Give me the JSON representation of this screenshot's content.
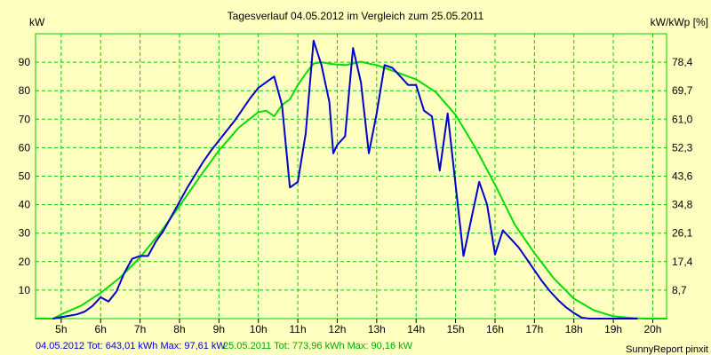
{
  "chart_data": {
    "type": "line",
    "title": "Tagesverlauf 04.05.2012 im Vergleich zum 25.05.2011",
    "ylabel_left": "kW",
    "ylabel_right": "kW/kWp [%]",
    "x_ticks": [
      "5h",
      "6h",
      "7h",
      "8h",
      "9h",
      "10h",
      "11h",
      "12h",
      "13h",
      "14h",
      "15h",
      "16h",
      "17h",
      "18h",
      "19h",
      "20h"
    ],
    "y_ticks_left": [
      "10",
      "20",
      "30",
      "40",
      "50",
      "60",
      "70",
      "80",
      "90"
    ],
    "y_ticks_right": [
      "8,7",
      "17,4",
      "26,1",
      "34,8",
      "43,6",
      "52,3",
      "61,0",
      "69,7",
      "78,4"
    ],
    "xlim": [
      4.35,
      20.35
    ],
    "ylim": [
      0,
      100
    ],
    "grid": true,
    "colors": {
      "background": "#ffffc0",
      "grid": "#00cc00",
      "series_2012": "#0000cc",
      "series_2011": "#00dd00"
    },
    "series": [
      {
        "legend": "04.05.2012 Tot: 643,01 kWh Max: 97,61 kW",
        "color": "#0000cc",
        "x": [
          4.8,
          5.0,
          5.2,
          5.4,
          5.6,
          5.8,
          6.0,
          6.2,
          6.4,
          6.6,
          6.8,
          7.0,
          7.2,
          7.4,
          7.6,
          7.8,
          8.0,
          8.2,
          8.4,
          8.6,
          8.8,
          9.0,
          9.2,
          9.4,
          9.6,
          9.8,
          10.0,
          10.2,
          10.4,
          10.6,
          10.8,
          11.0,
          11.2,
          11.4,
          11.6,
          11.8,
          11.9,
          12.0,
          12.2,
          12.4,
          12.6,
          12.8,
          13.0,
          13.2,
          13.4,
          13.6,
          13.8,
          14.0,
          14.2,
          14.4,
          14.6,
          14.8,
          15.0,
          15.2,
          15.4,
          15.6,
          15.8,
          16.0,
          16.2,
          16.4,
          16.6,
          16.8,
          17.0,
          17.2,
          17.4,
          17.6,
          17.8,
          18.0,
          18.2,
          18.4,
          18.6,
          18.8,
          19.0,
          19.2,
          19.4,
          19.6
        ],
        "y": [
          0,
          0.5,
          1,
          1.5,
          2.5,
          4.5,
          7.5,
          6,
          9.5,
          16,
          21,
          22,
          22,
          27,
          31,
          36,
          41,
          46,
          50.5,
          55,
          59,
          62.5,
          66,
          69.5,
          73.5,
          77.5,
          81,
          83,
          85,
          75,
          46,
          48,
          65,
          97.6,
          89,
          76,
          58,
          61,
          64,
          95,
          83,
          58,
          72,
          89,
          88,
          85,
          82,
          82,
          73,
          71,
          52,
          72,
          47,
          22,
          35,
          48,
          40,
          22.5,
          31,
          28,
          25,
          21,
          17,
          13,
          9.5,
          6.5,
          4,
          2,
          0.3,
          0,
          0,
          0,
          0,
          0,
          0,
          0
        ],
        "note": ""
      },
      {
        "legend": "25.05.2011 Tot: 773,96 kWh Max: 90,16 kW",
        "color": "#00dd00",
        "x": [
          4.35,
          4.8,
          5.0,
          5.5,
          6.0,
          6.5,
          7.0,
          7.5,
          8.0,
          8.5,
          9.0,
          9.5,
          10.0,
          10.2,
          10.4,
          10.6,
          10.8,
          11.0,
          11.2,
          11.4,
          11.6,
          11.8,
          12.0,
          12.2,
          12.4,
          12.6,
          12.8,
          13.0,
          13.2,
          13.4,
          13.6,
          13.8,
          14.0,
          14.5,
          15.0,
          15.5,
          16.0,
          16.5,
          17.0,
          17.5,
          18.0,
          18.5,
          19.0,
          19.5,
          19.8,
          20.0,
          20.35
        ],
        "y": [
          0,
          0,
          1.5,
          4.5,
          9,
          14.5,
          21.5,
          30,
          39.5,
          49.5,
          59,
          67,
          72.5,
          73,
          71,
          75,
          77,
          82,
          86,
          89.5,
          90,
          89.5,
          89.2,
          89,
          89.5,
          90.2,
          89.5,
          89,
          88,
          87,
          86,
          85,
          84,
          79.5,
          71.5,
          60,
          47,
          33,
          23,
          14,
          7,
          3,
          0.8,
          0.2,
          0,
          0,
          0
        ],
        "note": ""
      }
    ]
  },
  "footer": {
    "legend_2012": "04.05.2012 Tot: 643,01 kWh Max: 97,61 kW",
    "legend_2011": "25.05.2011 Tot: 773,96 kWh Max: 90,16 kW",
    "credit": "SunnyReport pinxit"
  }
}
